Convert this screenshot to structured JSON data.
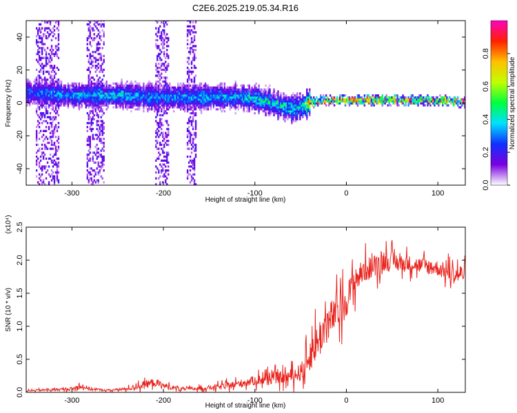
{
  "chart_data": [
    {
      "type": "heatmap",
      "title": "C2E6.2025.219.05.34.R16",
      "xlabel": "Height of straight line (km)",
      "ylabel": "Frequency (Hz)",
      "xlim": [
        -350,
        130
      ],
      "ylim": [
        -50,
        50
      ],
      "xticks": [
        -300,
        -200,
        -100,
        0,
        100
      ],
      "xtick_labels": [
        "-300",
        "-200",
        "-100",
        "0",
        "100"
      ],
      "yticks": [
        -40,
        -20,
        0,
        20,
        40
      ],
      "ytick_labels": [
        "-40",
        "-20",
        "0",
        "20",
        "40"
      ],
      "colorbar": {
        "label": "Normalized spectral amplitude",
        "range": [
          0,
          1
        ],
        "ticks": [
          0.0,
          0.2,
          0.4,
          0.6,
          0.8
        ],
        "tick_labels": [
          "0.0",
          "0.2",
          "0.4",
          "0.6",
          "0.8"
        ],
        "colormap": [
          "#ffffff",
          "#7a00e0",
          "#1030ff",
          "#00e0ff",
          "#00ff40",
          "#c0ff00",
          "#ffc000",
          "#ff2000",
          "#ff00c0"
        ]
      },
      "ridge": {
        "x": [
          -350,
          -320,
          -300,
          -250,
          -200,
          -150,
          -120,
          -100,
          -80,
          -60,
          -50,
          -40,
          -20,
          0,
          50,
          100,
          130
        ],
        "y": [
          6,
          5,
          4,
          4,
          3,
          3,
          3,
          2,
          -1,
          -4,
          -3,
          0,
          1,
          1,
          1,
          1,
          0
        ],
        "amplitude": [
          0.3,
          0.35,
          0.4,
          0.4,
          0.35,
          0.4,
          0.4,
          0.45,
          0.45,
          0.45,
          0.45,
          0.85,
          0.9,
          0.95,
          0.95,
          0.95,
          0.95
        ]
      },
      "vertical_bands_x": [
        [
          -340,
          -315
        ],
        [
          -285,
          -265
        ],
        [
          -210,
          -195
        ],
        [
          -175,
          -165
        ]
      ],
      "grid": false,
      "legend": "none"
    },
    {
      "type": "line",
      "title": "",
      "xlabel": "Height of straight line (km)",
      "ylabel": "SNR (10 * v/v)",
      "y_multiplier": "(x10⁴)",
      "xlim": [
        -350,
        130
      ],
      "ylim": [
        0,
        2.5
      ],
      "xticks": [
        -300,
        -200,
        -100,
        0,
        100
      ],
      "xtick_labels": [
        "-300",
        "-200",
        "-100",
        "0",
        "100"
      ],
      "yticks": [
        0.0,
        0.5,
        1.0,
        1.5,
        2.0,
        2.5
      ],
      "ytick_labels": [
        "0.0",
        "0.5",
        "1.0",
        "1.5",
        "2.0",
        "2.5"
      ],
      "series": [
        {
          "color": "#e8231c",
          "x": [
            -350,
            -340,
            -320,
            -300,
            -290,
            -280,
            -260,
            -240,
            -220,
            -210,
            -200,
            -180,
            -160,
            -140,
            -120,
            -100,
            -90,
            -80,
            -70,
            -60,
            -50,
            -45,
            -40,
            -35,
            -30,
            -25,
            -20,
            -15,
            -10,
            -5,
            0,
            5,
            10,
            20,
            30,
            40,
            50,
            60,
            70,
            80,
            90,
            100,
            110,
            120,
            130
          ],
          "y": [
            0.02,
            0.03,
            0.04,
            0.05,
            0.1,
            0.05,
            0.03,
            0.05,
            0.12,
            0.15,
            0.1,
            0.05,
            0.06,
            0.08,
            0.12,
            0.18,
            0.2,
            0.22,
            0.22,
            0.25,
            0.3,
            0.4,
            0.55,
            0.7,
            0.8,
            0.95,
            1.05,
            1.15,
            1.2,
            1.3,
            1.4,
            1.55,
            1.7,
            1.85,
            1.9,
            2.0,
            1.98,
            1.95,
            1.95,
            1.92,
            1.9,
            1.88,
            1.82,
            1.78,
            1.8
          ],
          "noise": [
            0.02,
            0.02,
            0.03,
            0.04,
            0.08,
            0.04,
            0.02,
            0.04,
            0.1,
            0.1,
            0.08,
            0.04,
            0.05,
            0.07,
            0.1,
            0.12,
            0.15,
            0.15,
            0.15,
            0.18,
            0.22,
            0.3,
            0.4,
            0.45,
            0.5,
            0.5,
            0.5,
            0.45,
            0.45,
            0.45,
            0.4,
            0.4,
            0.35,
            0.3,
            0.3,
            0.28,
            0.25,
            0.22,
            0.2,
            0.2,
            0.2,
            0.2,
            0.22,
            0.25,
            0.25
          ]
        }
      ],
      "grid": false,
      "legend": "none"
    }
  ]
}
